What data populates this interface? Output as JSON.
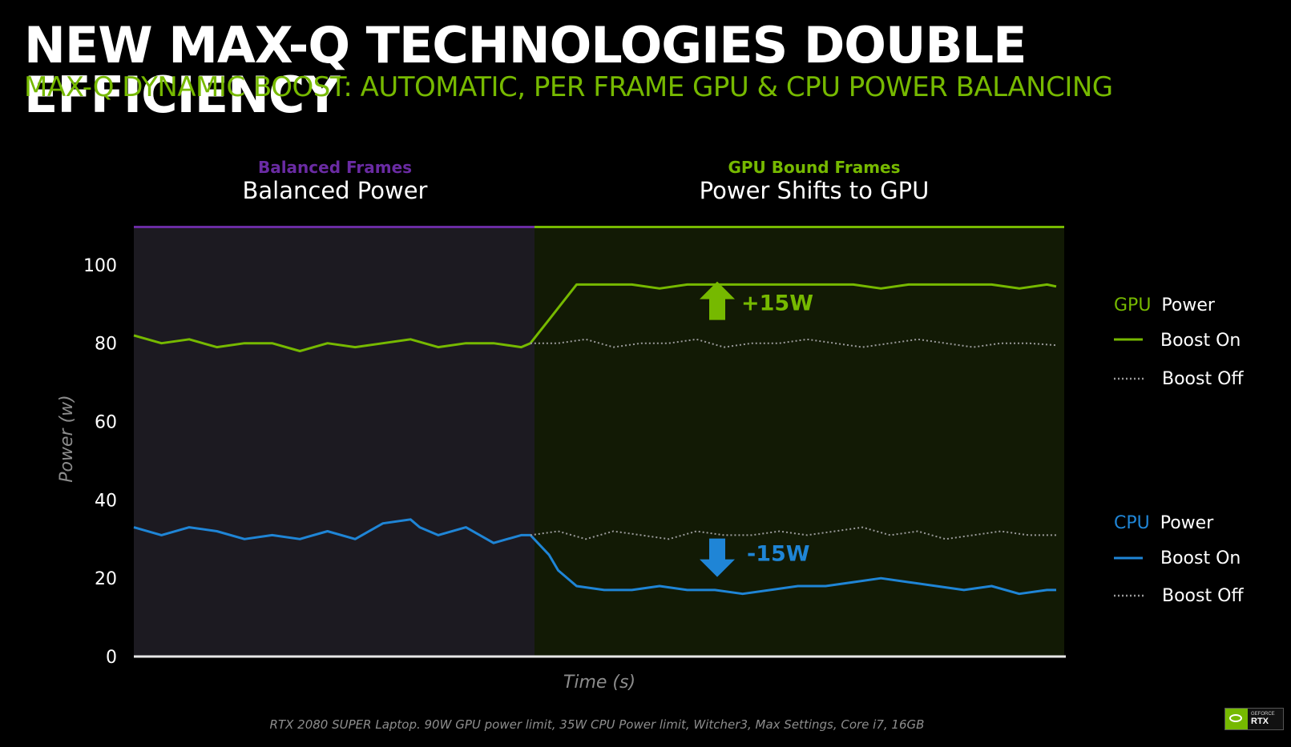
{
  "slide": {
    "title": "NEW MAX-Q TECHNOLOGIES DOUBLE EFFICIENCY",
    "subtitle": "MAX-Q DYNAMIC BOOST: AUTOMATIC, PER FRAME GPU & CPU POWER BALANCING",
    "footnote": "RTX 2080 SUPER Laptop. 90W GPU power limit, 35W CPU Power limit, Witcher3, Max Settings, Core i7, 16GB",
    "badge": {
      "small": "GEFORCE",
      "large": "RTX",
      "icon": "nvidia-eye-icon"
    }
  },
  "colors": {
    "background": "#000000",
    "balanced_region": "#1c1a21",
    "gpu_region": "#121a05",
    "purple": "#6a2ba3",
    "green": "#76b900",
    "blue": "#1f85d6",
    "dotted": "#9a9a9a",
    "axis": "#e8e8e8"
  },
  "chart_data": {
    "type": "line",
    "xlabel": "Time (s)",
    "ylabel": "Power (w)",
    "ylim": [
      0,
      110
    ],
    "yticks": [
      0,
      20,
      40,
      60,
      80,
      100
    ],
    "regions": [
      {
        "top_label": "Balanced Frames",
        "label": "Balanced Power",
        "color": "purple"
      },
      {
        "top_label": "GPU Bound Frames",
        "label": "Power Shifts to GPU",
        "color": "green"
      }
    ],
    "annotations": [
      {
        "text": "+15W",
        "direction": "up",
        "color": "green",
        "y": 88
      },
      {
        "text": "-15W",
        "direction": "down",
        "color": "blue",
        "y": 24
      }
    ],
    "legend": [
      {
        "group": "GPU",
        "suffix": "Power",
        "color": "green",
        "items": [
          {
            "label": "Boost On",
            "style": "solid"
          },
          {
            "label": "Boost Off",
            "style": "dotted"
          }
        ]
      },
      {
        "group": "CPU",
        "suffix": "Power",
        "color": "blue",
        "items": [
          {
            "label": "Boost On",
            "style": "solid"
          },
          {
            "label": "Boost Off",
            "style": "dotted"
          }
        ]
      }
    ],
    "series": [
      {
        "group": "GPU",
        "mode": "Boost On",
        "style": "solid",
        "color": "green",
        "x": [
          0,
          3,
          6,
          9,
          12,
          15,
          18,
          21,
          24,
          27,
          30,
          33,
          36,
          39,
          42,
          43,
          45,
          48,
          51,
          54,
          57,
          60,
          63,
          66,
          69,
          72,
          75,
          78,
          81,
          84,
          87,
          90,
          93,
          96,
          99,
          100
        ],
        "values": [
          82,
          80,
          81,
          79,
          80,
          80,
          78,
          80,
          79,
          80,
          81,
          79,
          80,
          80,
          79,
          80,
          86,
          95,
          95,
          95,
          94,
          95,
          95,
          95,
          95,
          95,
          95,
          95,
          94,
          95,
          95,
          95,
          95,
          94,
          95,
          94.5
        ]
      },
      {
        "group": "GPU",
        "mode": "Boost Off",
        "style": "dotted",
        "color": "dotted",
        "x": [
          43,
          46,
          49,
          52,
          55,
          58,
          61,
          64,
          67,
          70,
          73,
          76,
          79,
          82,
          85,
          88,
          91,
          94,
          97,
          100
        ],
        "values": [
          80,
          80,
          81,
          79,
          80,
          80,
          81,
          79,
          80,
          80,
          81,
          80,
          79,
          80,
          81,
          80,
          79,
          80,
          80,
          79.5
        ]
      },
      {
        "group": "CPU",
        "mode": "Boost On",
        "style": "solid",
        "color": "blue",
        "x": [
          0,
          3,
          6,
          9,
          12,
          15,
          18,
          21,
          24,
          27,
          30,
          31,
          33,
          36,
          39,
          42,
          43,
          45,
          46,
          48,
          51,
          54,
          57,
          60,
          63,
          66,
          69,
          72,
          75,
          78,
          81,
          84,
          87,
          90,
          93,
          96,
          99,
          100
        ],
        "values": [
          33,
          31,
          33,
          32,
          30,
          31,
          30,
          32,
          30,
          34,
          35,
          33,
          31,
          33,
          29,
          31,
          31,
          26,
          22,
          18,
          17,
          17,
          18,
          17,
          17,
          16,
          17,
          18,
          18,
          19,
          20,
          19,
          18,
          17,
          18,
          16,
          17,
          17
        ]
      },
      {
        "group": "CPU",
        "mode": "Boost Off",
        "style": "dotted",
        "color": "dotted",
        "x": [
          43,
          46,
          49,
          52,
          55,
          58,
          61,
          64,
          67,
          70,
          73,
          76,
          79,
          82,
          85,
          88,
          91,
          94,
          97,
          100
        ],
        "values": [
          31,
          32,
          30,
          32,
          31,
          30,
          32,
          31,
          31,
          32,
          31,
          32,
          33,
          31,
          32,
          30,
          31,
          32,
          31,
          31
        ]
      }
    ]
  }
}
